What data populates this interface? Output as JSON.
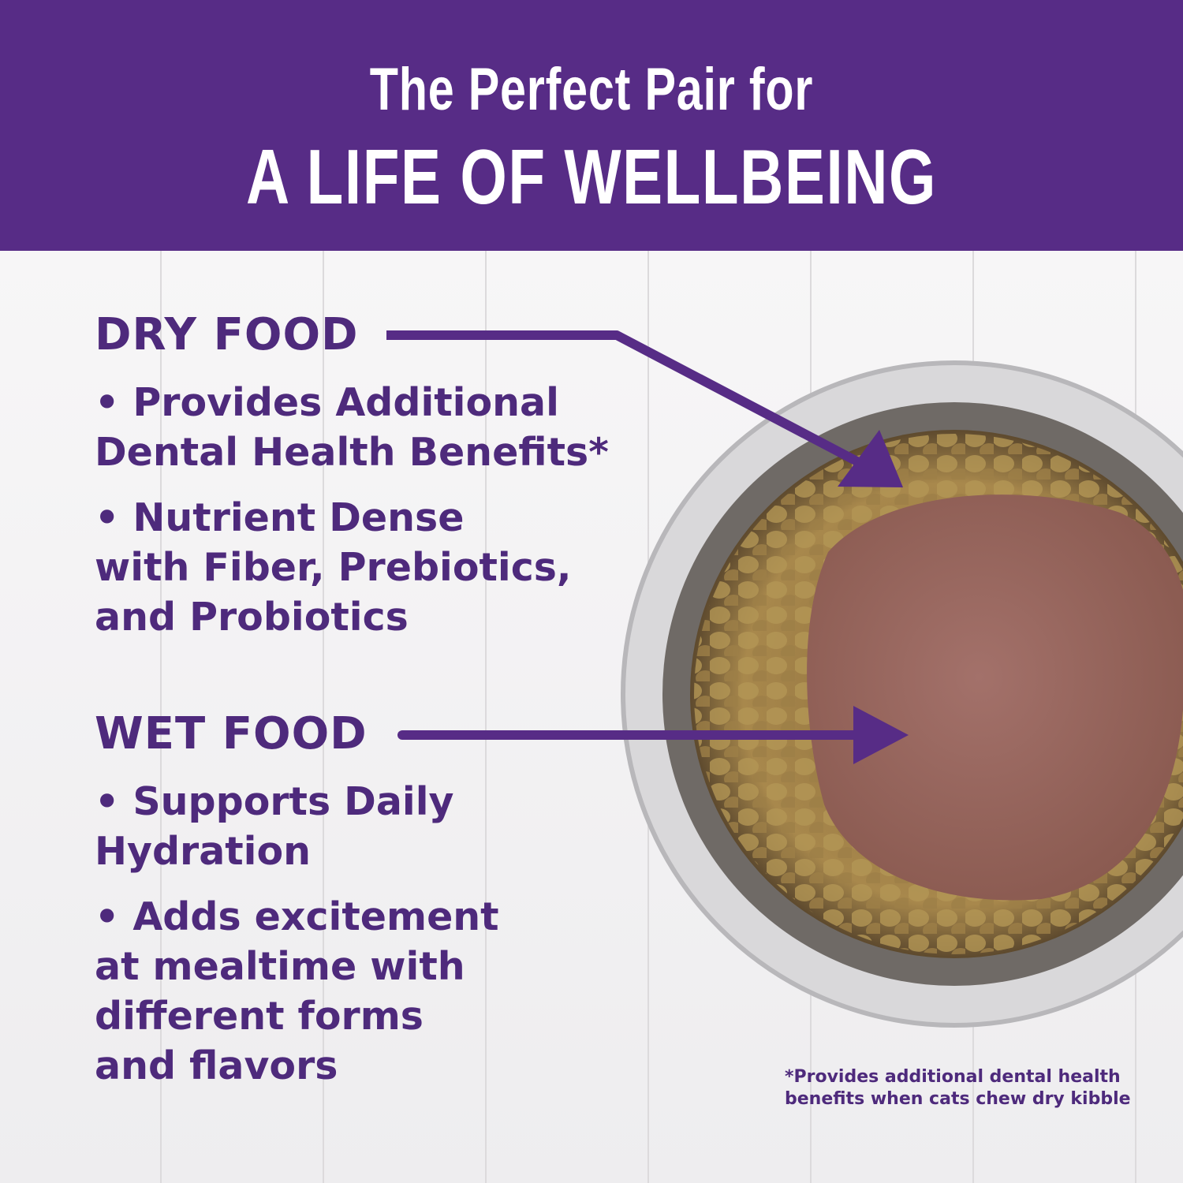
{
  "header": {
    "line1": "The Perfect Pair for",
    "line2": "A LIFE OF WELLBEING",
    "background": "#572c86"
  },
  "dry_food": {
    "heading": "DRY FOOD",
    "bullets": [
      [
        "• Provides Additional",
        "Dental Health Benefits*"
      ],
      [
        "• Nutrient Dense",
        "with Fiber, Prebiotics,",
        "and Probiotics"
      ]
    ]
  },
  "wet_food": {
    "heading": "WET FOOD",
    "bullets": [
      [
        "• Supports Daily",
        "Hydration"
      ],
      [
        "• Adds excitement",
        "at mealtime with",
        "different forms",
        "and flavors"
      ]
    ]
  },
  "footnote": [
    "*Provides additional dental health",
    "benefits when cats chew dry kibble"
  ],
  "colors": {
    "text_purple": "#4e2a7c",
    "arrow_purple": "#572c86"
  }
}
